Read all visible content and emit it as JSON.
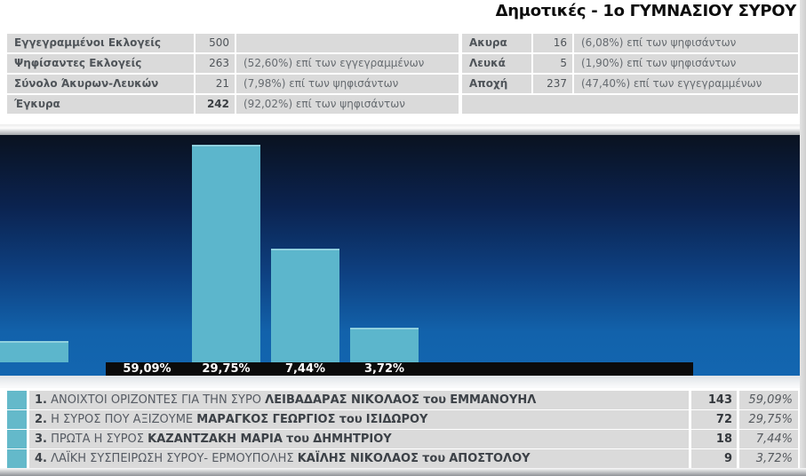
{
  "page": {
    "title": "Δημοτικές - 1ο ΓΥΜΝΑΣΙΟΥ ΣΥΡΟΥ"
  },
  "summary_left": {
    "rows": [
      {
        "label": "Εγγεγραμμένοι Εκλογείς",
        "value": "500",
        "note": ""
      },
      {
        "label": "Ψηφίσαντες Εκλογείς",
        "value": "263",
        "note": "(52,60%) επί των εγγεγραμμένων"
      },
      {
        "label": "Σύνολο Άκυρων-Λευκών",
        "value": "21",
        "note": "(7,98%) επί των ψηφισάντων"
      },
      {
        "label": "Έγκυρα",
        "value": "242",
        "note": "(92,02%) επί των ψηφισάντων"
      }
    ]
  },
  "summary_right": {
    "rows": [
      {
        "label": "Ακυρα",
        "value": "16",
        "note": "(6,08%) επί των ψηφισάντων"
      },
      {
        "label": "Λευκά",
        "value": "5",
        "note": "(1,90%) επί των ψηφισάντων"
      },
      {
        "label": "Αποχή",
        "value": "237",
        "note": "(47,40%) επί των εγγεγραμμένων"
      }
    ]
  },
  "chart_data": {
    "type": "bar",
    "categories": [
      "ΑΝΟΙΧΤΟΙ ΟΡΙΖΟΝΤΕΣ ΓΙΑ ΤΗΝ ΣΥΡΟ - ΛΕΙΒΑΔΑΡΑΣ ΝΙΚΟΛΑΟΣ",
      "Η ΣΥΡΟΣ ΠΟΥ ΑΞΙΖΟΥΜΕ - ΜΑΡΑΓΚΟΣ ΓΕΩΡΓΙΟΣ",
      "ΠΡΩΤΑ Η ΣΥΡΟΣ - ΚΑΖΑΝΤΖΑΚΗ ΜΑΡΙΑ",
      "ΛΑΪΚΗ ΣΥΣΠΕΙΡΩΣΗ ΣΥΡΟΥ- ΕΡΜΟΥΠΟΛΗΣ - ΚΑΪΛΗΣ ΝΙΚΟΛΑΟΣ"
    ],
    "values": [
      59.09,
      29.75,
      7.44,
      3.72
    ],
    "value_labels": [
      "59,09%",
      "29,75%",
      "7,44%",
      "3,72%"
    ],
    "title": "",
    "xlabel": "",
    "ylabel": "",
    "ylim": [
      0,
      65
    ],
    "grid": "off",
    "legend": "none",
    "bar_color": "#5cb6cc",
    "plot_background": "vertical gradient dark navy #0a1220 to blue #1366b0",
    "value_label_strip_color": "#0b0b0b"
  },
  "results": {
    "rows": [
      {
        "rank": "1.",
        "party": "ΑΝΟΙΧΤΟΙ ΟΡΙΖΟΝΤΕΣ ΓΙΑ ΤΗΝ ΣΥΡΟ",
        "candidate": "ΛΕΙΒΑΔΑΡΑΣ ΝΙΚΟΛΑΟΣ",
        "of": "του",
        "father": "ΕΜΜΑΝΟΥΗΛ",
        "votes": "143",
        "pct": "59,09%"
      },
      {
        "rank": "2.",
        "party": "Η ΣΥΡΟΣ ΠΟΥ ΑΞΙΖΟΥΜΕ",
        "candidate": "ΜΑΡΑΓΚΟΣ ΓΕΩΡΓΙΟΣ",
        "of": "του",
        "father": "ΙΣΙΔΩΡΟΥ",
        "votes": "72",
        "pct": "29,75%"
      },
      {
        "rank": "3.",
        "party": "ΠΡΩΤΑ Η ΣΥΡΟΣ",
        "candidate": "ΚΑΖΑΝΤΖΑΚΗ ΜΑΡΙΑ",
        "of": "του",
        "father": "ΔΗΜΗΤΡΙΟΥ",
        "votes": "18",
        "pct": "7,44%"
      },
      {
        "rank": "4.",
        "party": "ΛΑΪΚΗ ΣΥΣΠΕΙΡΩΣΗ ΣΥΡΟΥ- ΕΡΜΟΥΠΟΛΗΣ",
        "candidate": "ΚΑΪΛΗΣ ΝΙΚΟΛΑΟΣ",
        "of": "του",
        "father": "ΑΠΟΣΤΟΛΟΥ",
        "votes": "9",
        "pct": "3,72%"
      }
    ]
  },
  "colors": {
    "accent_teal": "#5cb6cc",
    "row_bg": "#dadada",
    "strip_black": "#0b0b0b",
    "chart_blue_bottom": "#1366b0",
    "chart_navy_top": "#0a1220"
  }
}
